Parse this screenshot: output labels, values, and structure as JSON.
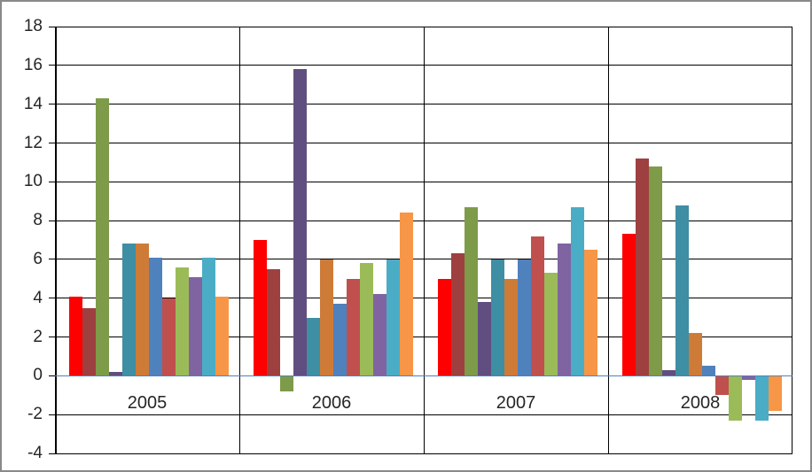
{
  "chart_data": {
    "type": "bar",
    "title": "",
    "legend": false,
    "grid": true,
    "categories": [
      "2005",
      "2006",
      "2007",
      "2008"
    ],
    "series": [
      {
        "name": "red",
        "color": "#FF0000",
        "values": [
          4.1,
          7.0,
          5.0,
          7.3
        ]
      },
      {
        "name": "dark-red",
        "color": "#9E4040",
        "values": [
          3.5,
          5.5,
          6.3,
          11.2
        ]
      },
      {
        "name": "olive-green",
        "color": "#7D9B49",
        "values": [
          14.3,
          -0.8,
          8.7,
          10.8
        ]
      },
      {
        "name": "dark-purple",
        "color": "#614E80",
        "values": [
          0.2,
          15.8,
          3.8,
          0.3
        ]
      },
      {
        "name": "teal",
        "color": "#3E8EA4",
        "values": [
          6.8,
          3.0,
          6.0,
          8.8
        ]
      },
      {
        "name": "dark-orange",
        "color": "#CE7B38",
        "values": [
          6.8,
          6.0,
          5.0,
          2.2
        ]
      },
      {
        "name": "blue",
        "color": "#4F81BD",
        "values": [
          6.1,
          3.7,
          6.0,
          0.5
        ]
      },
      {
        "name": "brick-red",
        "color": "#C0504D",
        "values": [
          4.0,
          5.0,
          7.2,
          -1.0
        ]
      },
      {
        "name": "light-green",
        "color": "#9BBB59",
        "values": [
          5.6,
          5.8,
          5.3,
          -2.3
        ]
      },
      {
        "name": "purple",
        "color": "#8064A2",
        "values": [
          5.1,
          4.2,
          6.8,
          -0.2
        ]
      },
      {
        "name": "cyan",
        "color": "#4BACC6",
        "values": [
          6.1,
          6.0,
          8.7,
          -2.3
        ]
      },
      {
        "name": "light-orange",
        "color": "#F79646",
        "values": [
          4.1,
          8.4,
          6.5,
          -1.8
        ]
      }
    ],
    "y_axis": {
      "min": -4,
      "max": 18,
      "step": 2,
      "tick_labels": [
        "18",
        "16",
        "14",
        "12",
        "10",
        "8",
        "6",
        "4",
        "2",
        "0",
        "-2",
        "-4"
      ]
    },
    "colors": {
      "gridline": "#000000",
      "axis_line": "#000000",
      "zero_axis_line": "#4F81BD",
      "frame_border": "#898989",
      "background": "#FFFFFF",
      "text": "#262626"
    }
  }
}
